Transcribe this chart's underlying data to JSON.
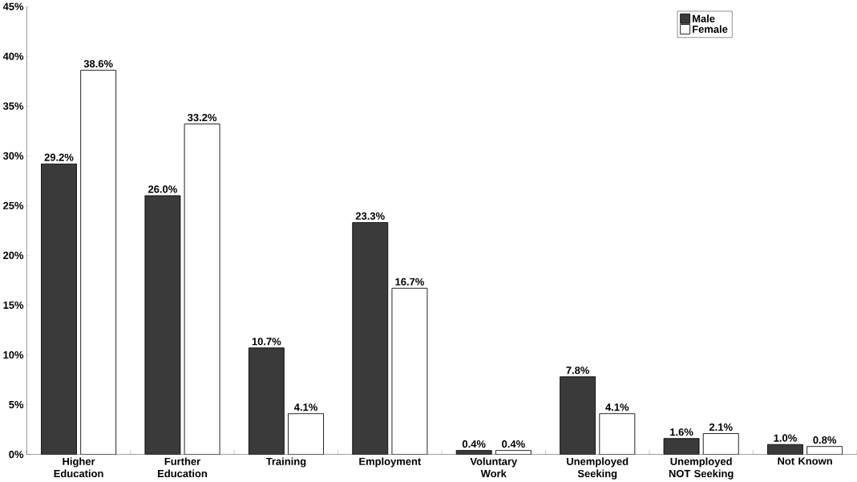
{
  "chart_data": {
    "type": "bar",
    "categories": [
      "Higher Education",
      "Further Education",
      "Training",
      "Employment",
      "Voluntary Work",
      "Unemployed Seeking",
      "Unemployed NOT Seeking",
      "Not Known"
    ],
    "series": [
      {
        "name": "Male",
        "color": "#3a3a3a",
        "values": [
          29.2,
          26.0,
          10.7,
          23.3,
          0.4,
          7.8,
          1.6,
          1.0
        ],
        "value_labels": [
          "29.2%",
          "26.0%",
          "10.7%",
          "23.3%",
          "0.4%",
          "7.8%",
          "1.6%",
          "1.0%"
        ]
      },
      {
        "name": "Female",
        "color": "#ffffff",
        "values": [
          38.6,
          33.2,
          4.1,
          16.7,
          0.4,
          4.1,
          2.1,
          0.8
        ],
        "value_labels": [
          "38.6%",
          "33.2%",
          "4.1%",
          "16.7%",
          "0.4%",
          "4.1%",
          "2.1%",
          "0.8%"
        ]
      }
    ],
    "ylim": [
      0,
      45
    ],
    "yticks": [
      {
        "value": 0,
        "label": "0%"
      },
      {
        "value": 5,
        "label": "5%"
      },
      {
        "value": 10,
        "label": "10%"
      },
      {
        "value": 15,
        "label": "15%"
      },
      {
        "value": 20,
        "label": "20%"
      },
      {
        "value": 25,
        "label": "25%"
      },
      {
        "value": 30,
        "label": "30%"
      },
      {
        "value": 35,
        "label": "35%"
      },
      {
        "value": 40,
        "label": "40%"
      },
      {
        "value": 45,
        "label": "45%"
      }
    ],
    "grid": false,
    "legend": "top right"
  }
}
